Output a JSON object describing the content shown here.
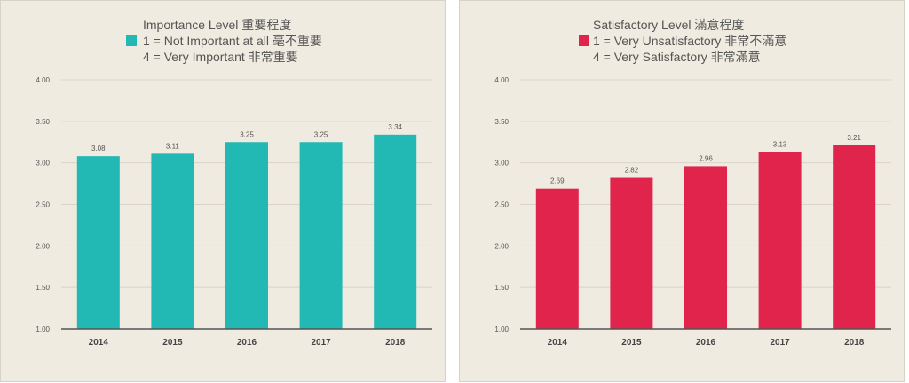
{
  "chart_data": [
    {
      "type": "bar",
      "legend": {
        "label": "Importance Level 重要程度",
        "note1": "1 = Not Important at all 毫不重要",
        "note2": "4 = Very Important 非常重要"
      },
      "color": "#22b8b4",
      "categories": [
        "2014",
        "2015",
        "2016",
        "2017",
        "2018"
      ],
      "values": [
        3.08,
        3.11,
        3.25,
        3.25,
        3.34
      ],
      "data_labels": [
        "3.08",
        "3.11",
        "3.25",
        "3.25",
        "3.34"
      ],
      "y_ticks": [
        "1.00",
        "1.50",
        "2.00",
        "2.50",
        "3.00",
        "3.50",
        "4.00"
      ],
      "ylim": [
        1,
        4
      ],
      "grid": true,
      "legend_position": "top"
    },
    {
      "type": "bar",
      "legend": {
        "label": "Satisfactory Level 滿意程度",
        "note1": "1 = Very Unsatisfactory 非常不滿意",
        "note2": "4 = Very Satisfactory 非常滿意"
      },
      "color": "#e0244c",
      "categories": [
        "2014",
        "2015",
        "2016",
        "2017",
        "2018"
      ],
      "values": [
        2.69,
        2.82,
        2.96,
        3.13,
        3.21
      ],
      "data_labels": [
        "2.69",
        "2.82",
        "2.96",
        "3.13",
        "3.21"
      ],
      "y_ticks": [
        "1.00",
        "1.50",
        "2.00",
        "2.50",
        "3.00",
        "3.50",
        "4.00"
      ],
      "ylim": [
        1,
        4
      ],
      "grid": true,
      "legend_position": "top"
    }
  ]
}
